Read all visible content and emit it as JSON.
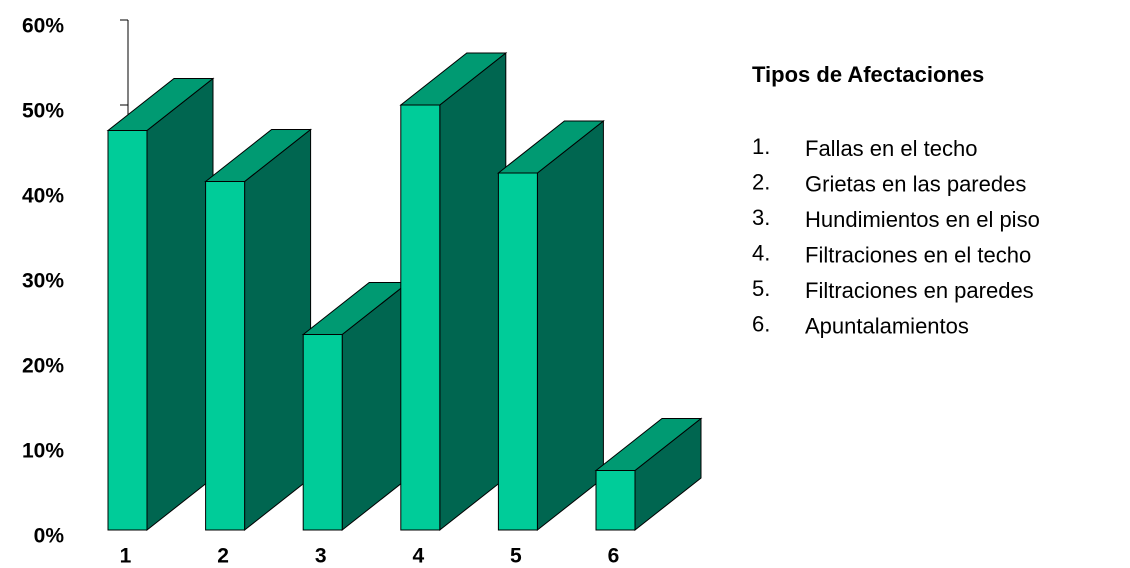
{
  "chart_data": {
    "type": "bar3d",
    "categories": [
      "1",
      "2",
      "3",
      "4",
      "5",
      "6"
    ],
    "values": [
      47,
      41,
      23,
      50,
      42,
      7
    ],
    "colors": {
      "front": "#00cc99",
      "top": "#009a72",
      "side": "#006650"
    },
    "ylim": [
      0,
      60
    ],
    "yticks": [
      {
        "value": 0,
        "label": "0%"
      },
      {
        "value": 10,
        "label": "10%"
      },
      {
        "value": 20,
        "label": "20%"
      },
      {
        "value": 30,
        "label": "30%"
      },
      {
        "value": 40,
        "label": "40%"
      },
      {
        "value": 50,
        "label": "50%"
      },
      {
        "value": 60,
        "label": "60%"
      }
    ],
    "legend": {
      "title": "Tipos de Afectaciones",
      "items": [
        {
          "number": "1.",
          "text": "Fallas en el techo"
        },
        {
          "number": "2.",
          "text": "Grietas en las paredes"
        },
        {
          "number": "3.",
          "text": "Hundimientos en el piso"
        },
        {
          "number": "4.",
          "text": "Filtraciones en el techo"
        },
        {
          "number": "5.",
          "text": "Filtraciones en paredes"
        },
        {
          "number": "6.",
          "text": "Apuntalamientos"
        }
      ]
    }
  }
}
